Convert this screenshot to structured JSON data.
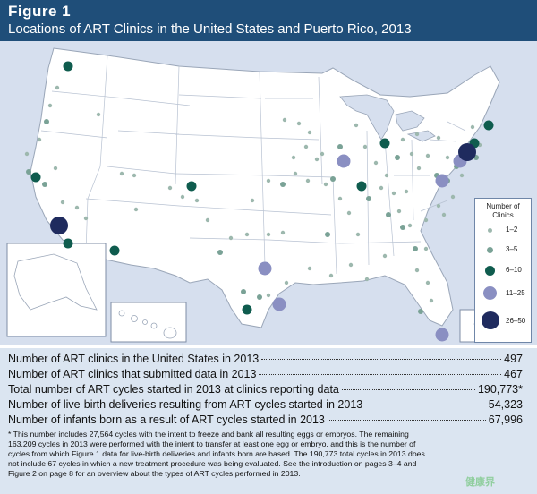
{
  "figure": {
    "label": "Figure 1",
    "title": "Locations of ART Clinics in the United States and Puerto Rico, 2013"
  },
  "legend": {
    "title_line1": "Number of",
    "title_line2": "Clinics",
    "items": [
      {
        "label": "1–2",
        "size_class": "small"
      },
      {
        "label": "3–5",
        "size_class": "medium-small"
      },
      {
        "label": "6–10",
        "size_class": "medium"
      },
      {
        "label": "11–25",
        "size_class": "large"
      },
      {
        "label": "26–50",
        "size_class": "xlarge"
      }
    ]
  },
  "colors": {
    "header_bg": "#1f4e79",
    "map_bg": "#d6dfee",
    "dot_small": "#8fb0a6",
    "dot_medium_small": "#7aa296",
    "dot_medium": "#0f5c4e",
    "dot_large": "#8a8fc2",
    "dot_xlarge": "#1f2b5e"
  },
  "stats": [
    {
      "label": "Number of ART clinics in the United States in 2013",
      "value": "497"
    },
    {
      "label": "Number of ART clinics that submitted data in 2013",
      "value": "467"
    },
    {
      "label": "Total number of ART cycles started in 2013 at clinics reporting data",
      "value": "190,773*"
    },
    {
      "label": "Number of live-birth deliveries resulting from ART cycles started in 2013",
      "value": "54,323"
    },
    {
      "label": "Number of infants born as a result of ART cycles started in 2013",
      "value": "67,996"
    }
  ],
  "footnote": [
    "* This number includes 27,564 cycles with the intent to freeze and bank all resulting eggs or embryos. The remaining",
    "163,209 cycles in 2013 were performed with the intent to transfer at least one egg or embryo, and this is the number of",
    "cycles from which Figure 1 data for live-birth deliveries and infants born are based. The 190,773 total cycles in 2013 does",
    "not include 67 cycles in which a new treatment procedure was being evaluated. See the introduction on pages 3–4 and",
    "Figure 2 on page 8 for an overview about the types of ART cycles performed in 2013."
  ],
  "watermark": "健康界"
}
